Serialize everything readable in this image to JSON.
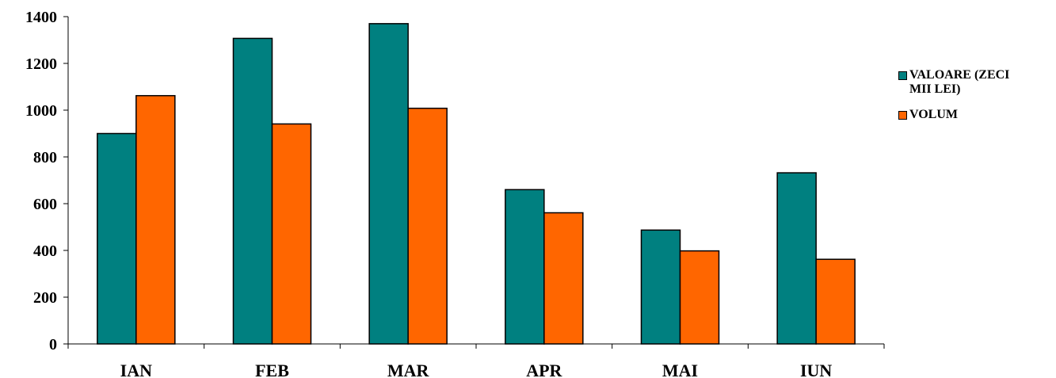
{
  "chart_data": {
    "type": "bar",
    "categories": [
      "IAN",
      "FEB",
      "MAR",
      "APR",
      "MAI",
      "IUN"
    ],
    "series": [
      {
        "name": "VALOARE (ZECI MII LEI)",
        "color": "#008080",
        "values": [
          900,
          1307,
          1370,
          660,
          487,
          732
        ]
      },
      {
        "name": "VOLUM",
        "color": "#FF6600",
        "values": [
          1062,
          941,
          1008,
          561,
          398,
          362
        ]
      }
    ],
    "ylim": [
      0,
      1400
    ],
    "yticks": [
      "0",
      "200",
      "400",
      "600",
      "800",
      "1000",
      "1200",
      "1400"
    ],
    "grid": false,
    "legend": "right"
  }
}
